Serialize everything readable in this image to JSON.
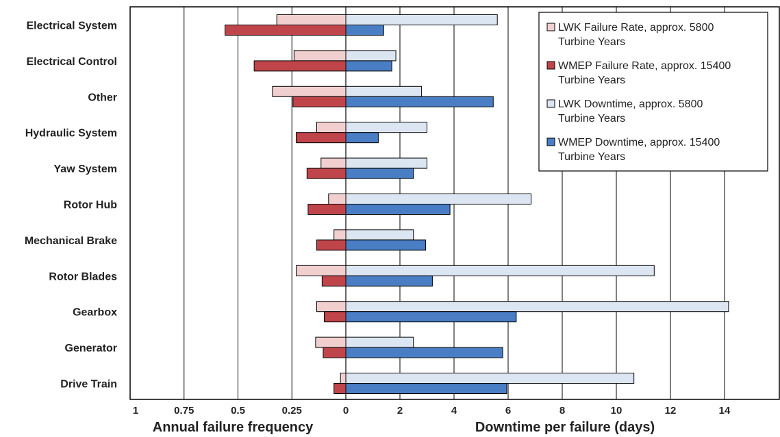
{
  "chart_data": {
    "type": "bar",
    "orientation": "horizontal",
    "categories": [
      "Electrical System",
      "Electrical Control",
      "Other",
      "Hydraulic System",
      "Yaw System",
      "Rotor Hub",
      "Mechanical Brake",
      "Rotor Blades",
      "Gearbox",
      "Generator",
      "Drive Train"
    ],
    "left_panel": {
      "xlabel": "Annual failure frequency",
      "ticks": [
        "1",
        "0.75",
        "0.5",
        "0.25",
        "0"
      ],
      "xlim": [
        0,
        1
      ],
      "direction": "reversed",
      "series": [
        {
          "name": "LWK Failure Rate, approx. 5800 Turbine Years",
          "color": "#f2cfcf",
          "values": [
            0.32,
            0.24,
            0.34,
            0.135,
            0.115,
            0.08,
            0.055,
            0.23,
            0.135,
            0.14,
            0.025
          ]
        },
        {
          "name": "WMEP Failure Rate, approx. 15400 Turbine Years",
          "color": "#c0454a",
          "values": [
            0.56,
            0.425,
            0.245,
            0.23,
            0.18,
            0.175,
            0.135,
            0.11,
            0.1,
            0.105,
            0.055
          ]
        }
      ]
    },
    "right_panel": {
      "xlabel": "Downtime per failure (days)",
      "ticks": [
        "2",
        "4",
        "6",
        "8",
        "10",
        "12",
        "14"
      ],
      "xlim": [
        0,
        16
      ],
      "series": [
        {
          "name": "LWK Downtime, approx. 5800 Turbine Years",
          "color": "#dce6f2",
          "values": [
            5.6,
            1.85,
            2.8,
            3.0,
            3.0,
            6.85,
            2.5,
            11.4,
            14.15,
            2.5,
            10.65
          ]
        },
        {
          "name": "WMEP Downtime, approx. 15400 Turbine Years",
          "color": "#4a7ec4",
          "values": [
            1.4,
            1.7,
            5.45,
            1.2,
            2.5,
            3.85,
            2.95,
            3.2,
            6.3,
            5.8,
            5.95
          ]
        }
      ]
    },
    "legend_position": "top-right",
    "grid": true
  },
  "legend": [
    {
      "line1": "LWK Failure Rate, approx. 5800",
      "line2": "Turbine Years",
      "color": "#f2cfcf"
    },
    {
      "line1": "WMEP Failure Rate, approx. 15400",
      "line2": "Turbine Years",
      "color": "#c0454a"
    },
    {
      "line1": "LWK Downtime, approx. 5800",
      "line2": "Turbine Years",
      "color": "#dce6f2"
    },
    {
      "line1": "WMEP Downtime, approx. 15400",
      "line2": "Turbine Years",
      "color": "#4a7ec4"
    }
  ]
}
